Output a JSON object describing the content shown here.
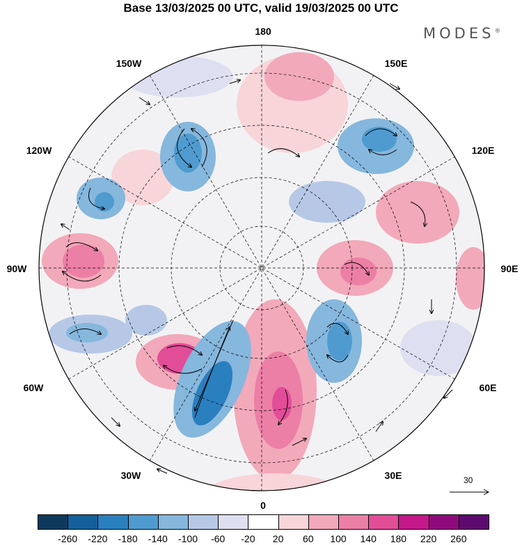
{
  "title": "Base 13/03/2025 00 UTC, valid 19/03/2025 00 UTC",
  "brand": "MODES",
  "brand_mark": "®",
  "longitude_labels": {
    "top": "180",
    "bottom": "0",
    "left": "90W",
    "right": "90E",
    "lon150w": "150W",
    "lon150e": "150E",
    "lon120w": "120W",
    "lon120e": "120E",
    "lon60w": "60W",
    "lon60e": "60E",
    "lon30w": "30W",
    "lon30e": "30E"
  },
  "reference_vector": {
    "label": "30"
  },
  "colorbar": {
    "ticks": [
      "-260",
      "-220",
      "-180",
      "-140",
      "-100",
      "-60",
      "-20",
      "20",
      "60",
      "100",
      "140",
      "180",
      "220",
      "260"
    ],
    "colors": [
      "#0d3a5c",
      "#13609a",
      "#2a7fbf",
      "#4f9bd0",
      "#86b7dd",
      "#b6c8e6",
      "#dedff0",
      "#ffffff",
      "#f7d5d9",
      "#f2a9b9",
      "#ec7fa6",
      "#e24d98",
      "#c5188a",
      "#8f0a7c",
      "#5c0a6e"
    ]
  }
}
